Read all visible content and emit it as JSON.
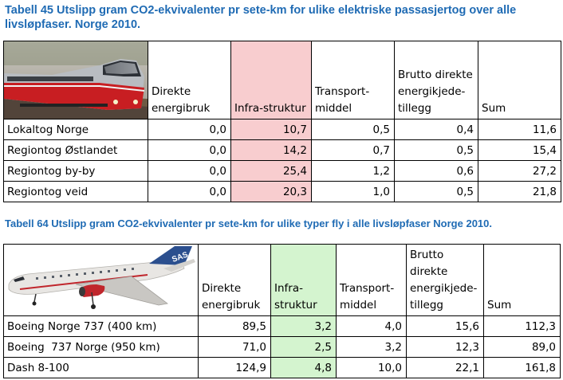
{
  "captions": {
    "table1": "Tabell 45 Utslipp gram CO2-ekvivalenter pr sete-km for ulike elektriske passasjertog over alle livsløpfaser. Norge 2010.",
    "table2": "Tabell 64 Utslipp gram CO2-ekvivalenter pr sete-km for ulike typer fly i alle livsløpfaser Norge 2010."
  },
  "table1": {
    "headers": [
      "Direkte energibruk",
      "Infra-struktur",
      "Transport-middel",
      "Brutto direkte energikjede-tillegg",
      "Sum"
    ],
    "rows": [
      {
        "label": "Lokaltog Norge",
        "values": [
          "0,0",
          "10,7",
          "0,5",
          "0,4",
          "11,6"
        ]
      },
      {
        "label": "Regiontog Østlandet",
        "values": [
          "0,0",
          "14,2",
          "0,7",
          "0,5",
          "15,4"
        ]
      },
      {
        "label": "Regiontog by-by",
        "values": [
          "0,0",
          "25,4",
          "1,2",
          "0,6",
          "27,2"
        ]
      },
      {
        "label": "Regiontog veid",
        "values": [
          "0,0",
          "20,3",
          "1,0",
          "0,5",
          "21,8"
        ]
      }
    ],
    "highlight_color": "#f8cdcf"
  },
  "table2": {
    "headers": [
      "Direkte energibruk",
      "Infra-struktur",
      "Transport-middel",
      "Brutto direkte energikjede-tillegg",
      "Sum"
    ],
    "rows": [
      {
        "label": "Boeing Norge 737 (400 km)",
        "values": [
          "89,5",
          "3,2",
          "4,0",
          "15,6",
          "112,3"
        ]
      },
      {
        "label": "Boeing  737 Norge (950 km)",
        "values": [
          "71,0",
          "2,5",
          "3,2",
          "12,3",
          "89,0"
        ]
      },
      {
        "label": "Dash 8-100",
        "values": [
          "124,9",
          "4,8",
          "10,0",
          "22,1",
          "161,8"
        ]
      }
    ],
    "highlight_color": "#d4f4cf"
  },
  "images": {
    "train": "train-photo",
    "plane": "airplane-photo",
    "plane_livery_text": "SAS"
  },
  "colors": {
    "caption": "#1f6bb4"
  }
}
